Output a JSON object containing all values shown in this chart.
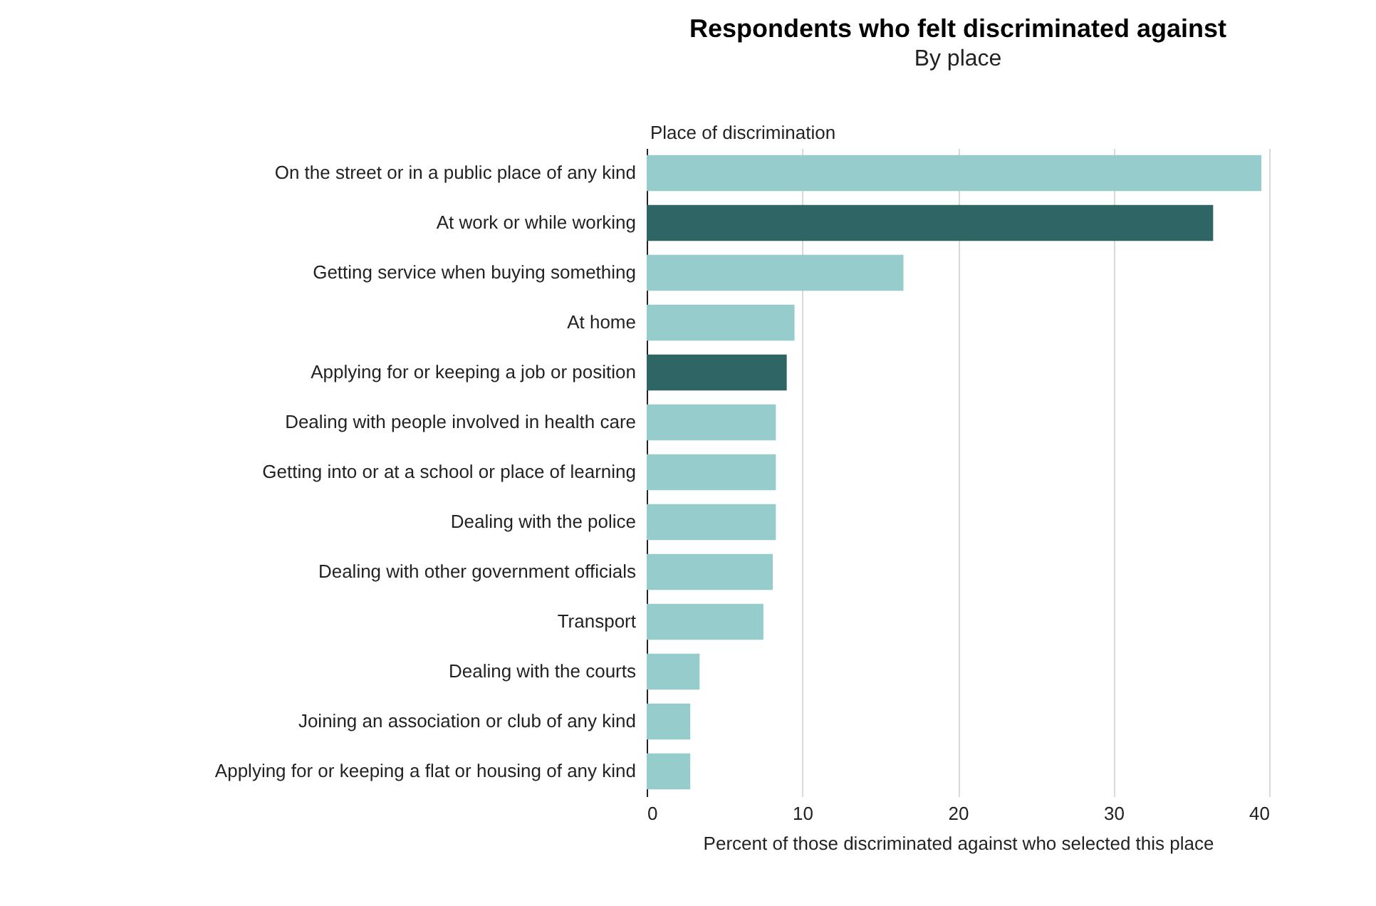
{
  "chart_data": {
    "type": "bar",
    "orientation": "horizontal",
    "title": "Respondents who felt discriminated against",
    "subtitle": "By place",
    "ylabel": "Place of discrimination",
    "xlabel": "Percent of those discriminated against who selected this place",
    "categories": [
      "On the street or in a public place of any kind",
      "At work or while working",
      "Getting service when buying something",
      "At home",
      "Applying for or keeping a job or position",
      "Dealing with people involved in health care",
      "Getting into or at a school or place of learning",
      "Dealing with the police",
      "Dealing with other government officials",
      "Transport",
      "Dealing with the courts",
      "Joining an association or club of any kind",
      "Applying for or keeping a flat or housing of any kind"
    ],
    "values": [
      39.5,
      36.4,
      16.5,
      9.5,
      9.0,
      8.3,
      8.3,
      8.3,
      8.1,
      7.5,
      3.4,
      2.8,
      2.8
    ],
    "colors": [
      "#96cccc",
      "#2f6565",
      "#96cccc",
      "#96cccc",
      "#2f6565",
      "#96cccc",
      "#96cccc",
      "#96cccc",
      "#96cccc",
      "#96cccc",
      "#96cccc",
      "#96cccc",
      "#96cccc"
    ],
    "xlim": [
      0,
      40
    ],
    "xticks": [
      0,
      10,
      20,
      30,
      40
    ],
    "grid": "x"
  }
}
